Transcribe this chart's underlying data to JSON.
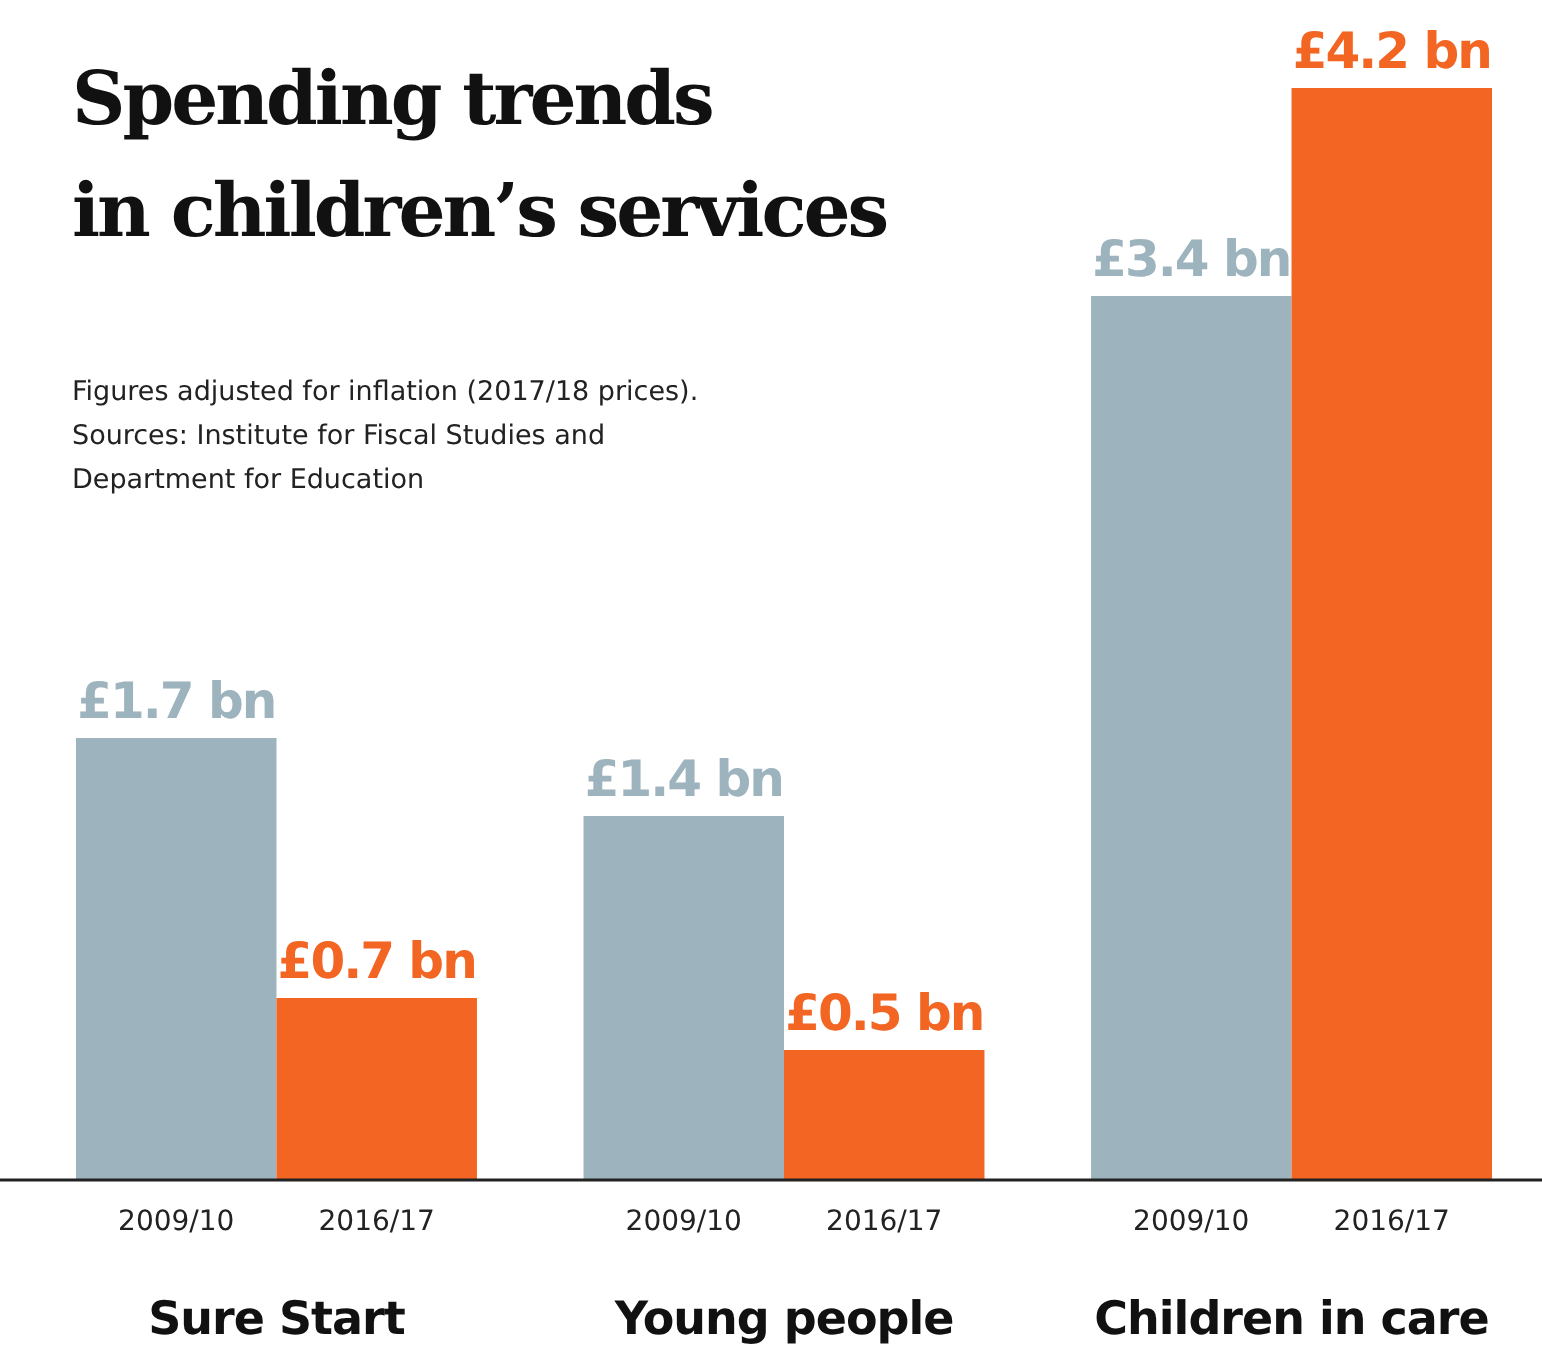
{
  "chart_data": {
    "type": "bar",
    "title": "Spending trends\nin children’s services",
    "annotations": [
      "Figures adjusted for inflation (2017/18 prices).\nSources: Institute for Fiscal Studies and\nDepartment for Education"
    ],
    "categories": [
      "Sure Start",
      "Young people",
      "Children in care"
    ],
    "series": [
      {
        "name": "2009/10",
        "color": "#9db3bd",
        "values": [
          1.7,
          1.4,
          3.4
        ],
        "value_labels": [
          "£1.7 bn",
          "£1.4 bn",
          "£3.4 bn"
        ]
      },
      {
        "name": "2016/17",
        "color": "#f26522",
        "values": [
          0.7,
          0.5,
          4.2
        ],
        "value_labels": [
          "£0.7 bn",
          "£0.5 bn",
          "£4.2 bn"
        ]
      }
    ],
    "legend": false
  }
}
